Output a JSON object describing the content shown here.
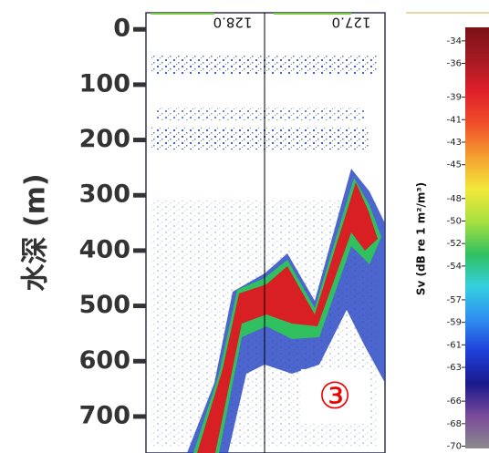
{
  "chart_data": {
    "type": "echogram",
    "y_label": "水深 (m)",
    "ylim": [
      -30,
      766
    ],
    "y_inverted": true,
    "yticks": [
      0,
      100,
      200,
      300,
      400,
      500,
      600,
      700
    ],
    "panel_labels": [
      "128.0",
      "127.0"
    ],
    "annotation": "③",
    "colorbar": {
      "label": "Sv (dB re 1 m²/m³)",
      "lim": [
        -70.2,
        -32.8
      ],
      "ticks": [
        -34,
        -36,
        -39,
        -41,
        -43,
        -45,
        -48,
        -50,
        -52,
        -54,
        -57,
        -59,
        -61,
        -63,
        -66,
        -68,
        -70
      ],
      "colors": [
        "#8b8b8b",
        "#7a4a9a",
        "#1a1a8c",
        "#1f3fd8",
        "#2f8ff0",
        "#35d0e0",
        "#30c060",
        "#a8e040",
        "#f2e83a",
        "#f5a030",
        "#f0502a",
        "#e0202a",
        "#a51a22",
        "#7a1216"
      ]
    }
  }
}
